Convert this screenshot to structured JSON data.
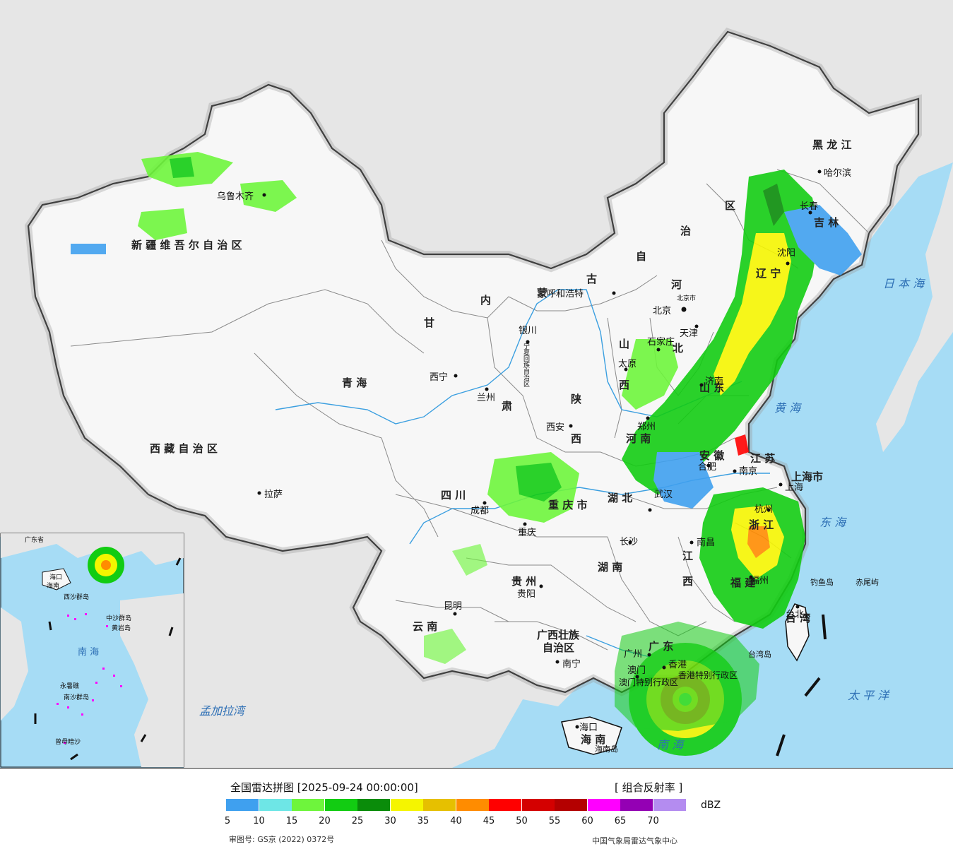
{
  "legend": {
    "title": "全国雷达拼图 [2025-09-24 00:00:00]",
    "product": "[ 组合反射率 ]",
    "unit": "dBZ",
    "colors": [
      "#3fa0ef",
      "#6ee6e6",
      "#6ef53c",
      "#12cc12",
      "#0a8c0a",
      "#f5f500",
      "#e6c000",
      "#ff8c00",
      "#ff0000",
      "#d40000",
      "#b40000",
      "#ff00ff",
      "#9400b4",
      "#b48cf0"
    ],
    "ticks": [
      "5",
      "10",
      "15",
      "20",
      "25",
      "30",
      "35",
      "40",
      "45",
      "50",
      "55",
      "60",
      "65",
      "70"
    ],
    "approval": "审图号: GS京 (2022) 0372号",
    "agency": "中国气象局雷达气象中心"
  },
  "map": {
    "colors": {
      "ocean": "#a6dcf5",
      "foreign": "#e6e6e6",
      "china": "#f7f7f7",
      "border": "#111111",
      "province": "#8a8a8a",
      "river": "#3b9fe0"
    },
    "provinces": [
      {
        "id": "xinjiang",
        "text": "新 疆 维 吾 尔 自 治 区"
      },
      {
        "id": "xizang",
        "text": "西 藏 自 治 区"
      },
      {
        "id": "qinghai",
        "text": "青        海"
      },
      {
        "id": "gansu",
        "text": "甘"
      },
      {
        "id": "gansu2",
        "text": "肃"
      },
      {
        "id": "neimenggu1",
        "text": "内"
      },
      {
        "id": "neimenggu2",
        "text": "蒙"
      },
      {
        "id": "neimenggu3",
        "text": "古"
      },
      {
        "id": "neimenggu4",
        "text": "自"
      },
      {
        "id": "neimenggu5",
        "text": "治"
      },
      {
        "id": "neimenggu6",
        "text": "区"
      },
      {
        "id": "heilongjiang",
        "text": "黑  龙  江"
      },
      {
        "id": "jilin",
        "text": "吉  林"
      },
      {
        "id": "liaoning",
        "text": "辽  宁"
      },
      {
        "id": "hebei1",
        "text": "河"
      },
      {
        "id": "hebei2",
        "text": "北"
      },
      {
        "id": "shanxi1",
        "text": "山"
      },
      {
        "id": "shanxi2",
        "text": "西"
      },
      {
        "id": "shaanxi1",
        "text": "陕"
      },
      {
        "id": "shaanxi2",
        "text": "西"
      },
      {
        "id": "shandong",
        "text": "山  东"
      },
      {
        "id": "henan",
        "text": "河  南"
      },
      {
        "id": "jiangsu",
        "text": "江  苏"
      },
      {
        "id": "anhui",
        "text": "安  徽"
      },
      {
        "id": "hubei",
        "text": "湖  北"
      },
      {
        "id": "hunan",
        "text": "湖  南"
      },
      {
        "id": "jiangxi1",
        "text": "江"
      },
      {
        "id": "jiangxi2",
        "text": "西"
      },
      {
        "id": "zhejiang",
        "text": "浙  江"
      },
      {
        "id": "fujian",
        "text": "福  建"
      },
      {
        "id": "sichuan",
        "text": "四  川"
      },
      {
        "id": "chongqing",
        "text": "重 庆 市"
      },
      {
        "id": "guizhou",
        "text": "贵  州"
      },
      {
        "id": "yunnan",
        "text": "云  南"
      },
      {
        "id": "guangxi",
        "text": "广西壮族"
      },
      {
        "id": "guangxi2",
        "text": "自治区"
      },
      {
        "id": "guangdong",
        "text": "广  东"
      },
      {
        "id": "hainan",
        "text": "海  南"
      },
      {
        "id": "ningxia",
        "text": "宁夏回族自治区"
      },
      {
        "id": "shanghai",
        "text": "上海市"
      },
      {
        "id": "taiwan",
        "text": "台  湾"
      },
      {
        "id": "hk",
        "text": "香港特别行政区"
      },
      {
        "id": "macau",
        "text": "澳门特别行政区"
      }
    ],
    "cities": [
      {
        "id": "urumqi",
        "text": "乌鲁木齐"
      },
      {
        "id": "lhasa",
        "text": "拉萨"
      },
      {
        "id": "xining",
        "text": "西宁"
      },
      {
        "id": "lanzhou",
        "text": "兰州"
      },
      {
        "id": "yinchuan",
        "text": "银川"
      },
      {
        "id": "hohhot",
        "text": "呼和浩特"
      },
      {
        "id": "harbin",
        "text": "哈尔滨"
      },
      {
        "id": "changchun",
        "text": "长春"
      },
      {
        "id": "shenyang",
        "text": "沈阳"
      },
      {
        "id": "beijing",
        "text": "北京"
      },
      {
        "id": "beijingshi",
        "text": "北京市"
      },
      {
        "id": "tianjin",
        "text": "天津"
      },
      {
        "id": "shijiazhuang",
        "text": "石家庄"
      },
      {
        "id": "taiyuan",
        "text": "太原"
      },
      {
        "id": "jinan",
        "text": "济南"
      },
      {
        "id": "zhengzhou",
        "text": "郑州"
      },
      {
        "id": "xian",
        "text": "西安"
      },
      {
        "id": "hefei",
        "text": "合肥"
      },
      {
        "id": "nanjing",
        "text": "南京"
      },
      {
        "id": "shanghaic",
        "text": "上海"
      },
      {
        "id": "hangzhou",
        "text": "杭州"
      },
      {
        "id": "wuhan",
        "text": "武汉"
      },
      {
        "id": "changsha",
        "text": "长沙"
      },
      {
        "id": "nanchang",
        "text": "南昌"
      },
      {
        "id": "fuzhou",
        "text": "福州"
      },
      {
        "id": "taipei",
        "text": "台北"
      },
      {
        "id": "chengdu",
        "text": "成都"
      },
      {
        "id": "chongqingc",
        "text": "重庆"
      },
      {
        "id": "guiyang",
        "text": "贵阳"
      },
      {
        "id": "kunming",
        "text": "昆明"
      },
      {
        "id": "nanning",
        "text": "南宁"
      },
      {
        "id": "guangzhou",
        "text": "广州"
      },
      {
        "id": "hongkong",
        "text": "香港"
      },
      {
        "id": "macao",
        "text": "澳门"
      },
      {
        "id": "haikou",
        "text": "海口"
      },
      {
        "id": "hainandao",
        "text": "海南岛"
      },
      {
        "id": "taiwandao",
        "text": "台湾岛"
      },
      {
        "id": "diaoyudao",
        "text": "钓鱼岛"
      },
      {
        "id": "chiweiyu",
        "text": "赤尾屿"
      }
    ],
    "seas": [
      {
        "id": "ribenhai",
        "text": "日 本 海"
      },
      {
        "id": "huanghai",
        "text": "黄  海"
      },
      {
        "id": "donghai",
        "text": "东  海"
      },
      {
        "id": "taipingyang",
        "text": "太  平  洋"
      },
      {
        "id": "nanhai",
        "text": "南  海"
      },
      {
        "id": "mengjialawan",
        "text": "孟加拉湾"
      }
    ],
    "inset": [
      {
        "id": "inset-nanhai",
        "text": "南  海"
      },
      {
        "id": "xisha",
        "text": "西沙群岛"
      },
      {
        "id": "zhongsha",
        "text": "中沙群岛"
      },
      {
        "id": "huangyandao",
        "text": "黄岩岛"
      },
      {
        "id": "nansha",
        "text": "南沙群岛"
      },
      {
        "id": "yongshujiao",
        "text": "永暑礁"
      },
      {
        "id": "zengmu",
        "text": "曾母暗沙"
      },
      {
        "id": "inset-haikou",
        "text": "海口"
      },
      {
        "id": "inset-guangdong",
        "text": "广东省"
      },
      {
        "id": "inset-hainan",
        "text": "海南"
      }
    ]
  }
}
